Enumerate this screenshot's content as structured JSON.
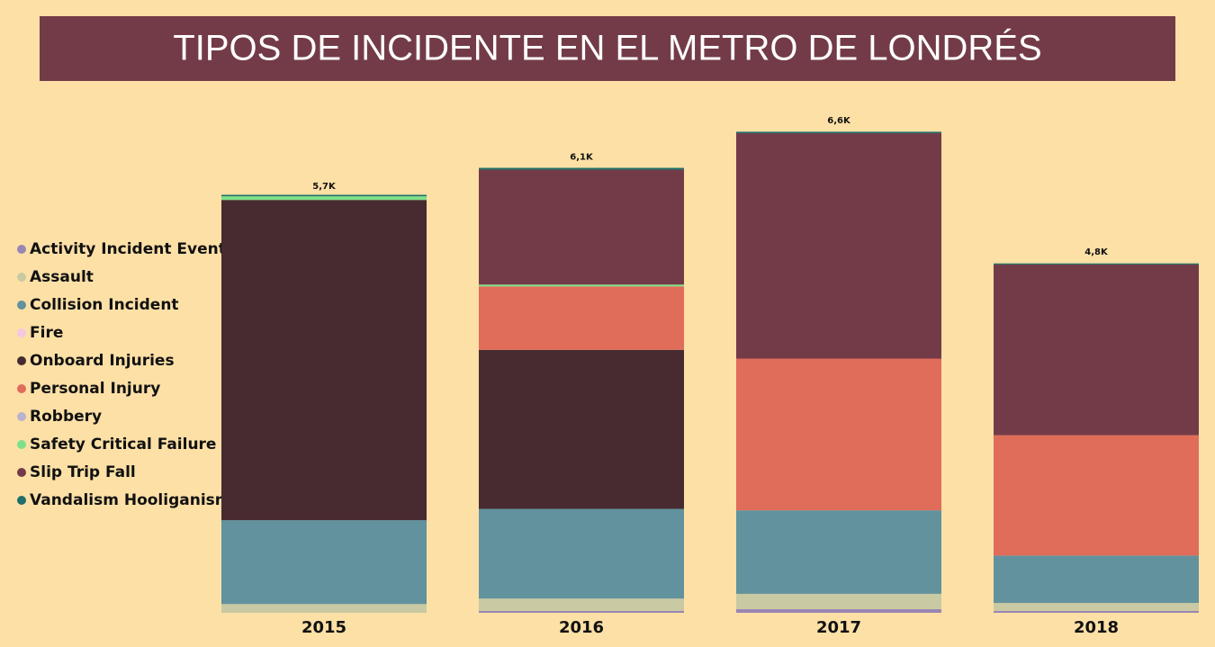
{
  "chart_data": {
    "type": "stacked_bar",
    "title": "TIPOS DE INCIDENTE EN EL METRO DE LONDRÉS",
    "categories": [
      "2015",
      "2016",
      "2017",
      "2018"
    ],
    "totals": [
      5700,
      6100,
      6600,
      4800
    ],
    "total_labels": [
      "5,7K",
      "6,1K",
      "6,6K",
      "4,8K"
    ],
    "series": [
      {
        "name": "Activity Incident Event",
        "color": "#9a86b3",
        "values": [
          0,
          25,
          50,
          25
        ]
      },
      {
        "name": "Assault",
        "color": "#c9c9a3",
        "values": [
          120,
          170,
          210,
          110
        ]
      },
      {
        "name": "Collision Incident",
        "color": "#62929e",
        "values": [
          1150,
          1230,
          1145,
          650
        ]
      },
      {
        "name": "Fire",
        "color": "#f3c8e0",
        "values": [
          0,
          0,
          0,
          0
        ]
      },
      {
        "name": "Onboard Injuries",
        "color": "#472b30",
        "values": [
          4390,
          2180,
          0,
          0
        ]
      },
      {
        "name": "Personal Injury",
        "color": "#e06c5a",
        "values": [
          0,
          870,
          2080,
          1650
        ]
      },
      {
        "name": "Robbery",
        "color": "#b8b4d0",
        "values": [
          0,
          0,
          0,
          0
        ]
      },
      {
        "name": "Safety Critical Failure",
        "color": "#7ee08a",
        "values": [
          50,
          25,
          0,
          0
        ]
      },
      {
        "name": "Slip Trip Fall",
        "color": "#733b48",
        "values": [
          0,
          1575,
          3090,
          2340
        ]
      },
      {
        "name": "Vandalism Hooliganism",
        "color": "#1f6f6a",
        "values": [
          20,
          25,
          20,
          15
        ]
      }
    ]
  }
}
